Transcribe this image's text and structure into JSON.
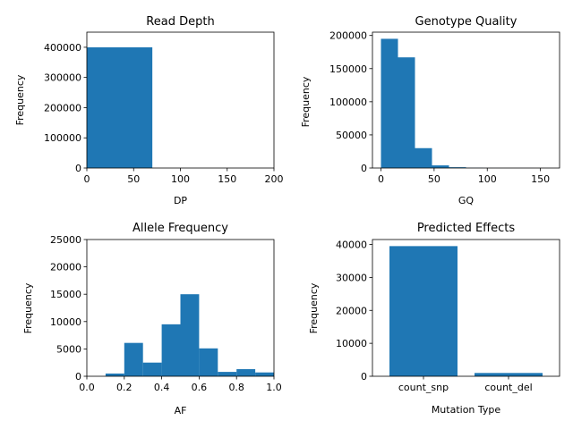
{
  "chart_data": [
    {
      "type": "bar",
      "title": "Read Depth",
      "xlabel": "DP",
      "ylabel": "Frequency",
      "xlim": [
        0,
        200
      ],
      "ylim": [
        0,
        450000
      ],
      "xticks": [
        0,
        50,
        100,
        150,
        200
      ],
      "yticks": [
        0,
        100000,
        200000,
        300000,
        400000
      ],
      "bins": [
        {
          "x0": 0,
          "x1": 70,
          "value": 400000
        }
      ],
      "color": "#1f77b4"
    },
    {
      "type": "bar",
      "title": "Genotype Quality",
      "xlabel": "GQ",
      "ylabel": "Frequency",
      "xlim": [
        -8,
        168
      ],
      "ylim": [
        0,
        205000
      ],
      "xticks": [
        0,
        50,
        100,
        150
      ],
      "yticks": [
        0,
        50000,
        100000,
        150000,
        200000
      ],
      "bins": [
        {
          "x0": 0,
          "x1": 16,
          "value": 195000
        },
        {
          "x0": 16,
          "x1": 32,
          "value": 167000
        },
        {
          "x0": 32,
          "x1": 48,
          "value": 30000
        },
        {
          "x0": 48,
          "x1": 64,
          "value": 4000
        },
        {
          "x0": 64,
          "x1": 80,
          "value": 1200
        },
        {
          "x0": 80,
          "x1": 96,
          "value": 300
        },
        {
          "x0": 96,
          "x1": 112,
          "value": 100
        },
        {
          "x0": 112,
          "x1": 128,
          "value": 50
        },
        {
          "x0": 128,
          "x1": 144,
          "value": 20
        },
        {
          "x0": 144,
          "x1": 160,
          "value": 10
        }
      ],
      "color": "#1f77b4"
    },
    {
      "type": "bar",
      "title": "Allele Frequency",
      "xlabel": "AF",
      "ylabel": "Frequency",
      "xlim": [
        0,
        1.0
      ],
      "ylim": [
        0,
        25000
      ],
      "xticks": [
        0.0,
        0.2,
        0.4,
        0.6,
        0.8,
        1.0
      ],
      "xtick_labels": [
        "0.0",
        "0.2",
        "0.4",
        "0.6",
        "0.8",
        "1.0"
      ],
      "yticks": [
        0,
        5000,
        10000,
        15000,
        20000,
        25000
      ],
      "bins": [
        {
          "x0": 0.1,
          "x1": 0.2,
          "value": 500
        },
        {
          "x0": 0.2,
          "x1": 0.3,
          "value": 6100
        },
        {
          "x0": 0.3,
          "x1": 0.4,
          "value": 2500
        },
        {
          "x0": 0.4,
          "x1": 0.5,
          "value": 9500
        },
        {
          "x0": 0.5,
          "x1": 0.6,
          "value": 15000
        },
        {
          "x0": 0.6,
          "x1": 0.7,
          "value": 5100
        },
        {
          "x0": 0.7,
          "x1": 0.8,
          "value": 800
        },
        {
          "x0": 0.8,
          "x1": 0.9,
          "value": 1300
        },
        {
          "x0": 0.9,
          "x1": 1.0,
          "value": 700
        }
      ],
      "color": "#1f77b4"
    },
    {
      "type": "bar",
      "title": "Predicted Effects",
      "xlabel": "Mutation Type",
      "ylabel": "Frequency",
      "categories": [
        "count_snp",
        "count_del"
      ],
      "values": [
        39500,
        1000
      ],
      "ylim": [
        0,
        41500
      ],
      "yticks": [
        0,
        10000,
        20000,
        30000,
        40000
      ],
      "color": "#1f77b4"
    }
  ]
}
